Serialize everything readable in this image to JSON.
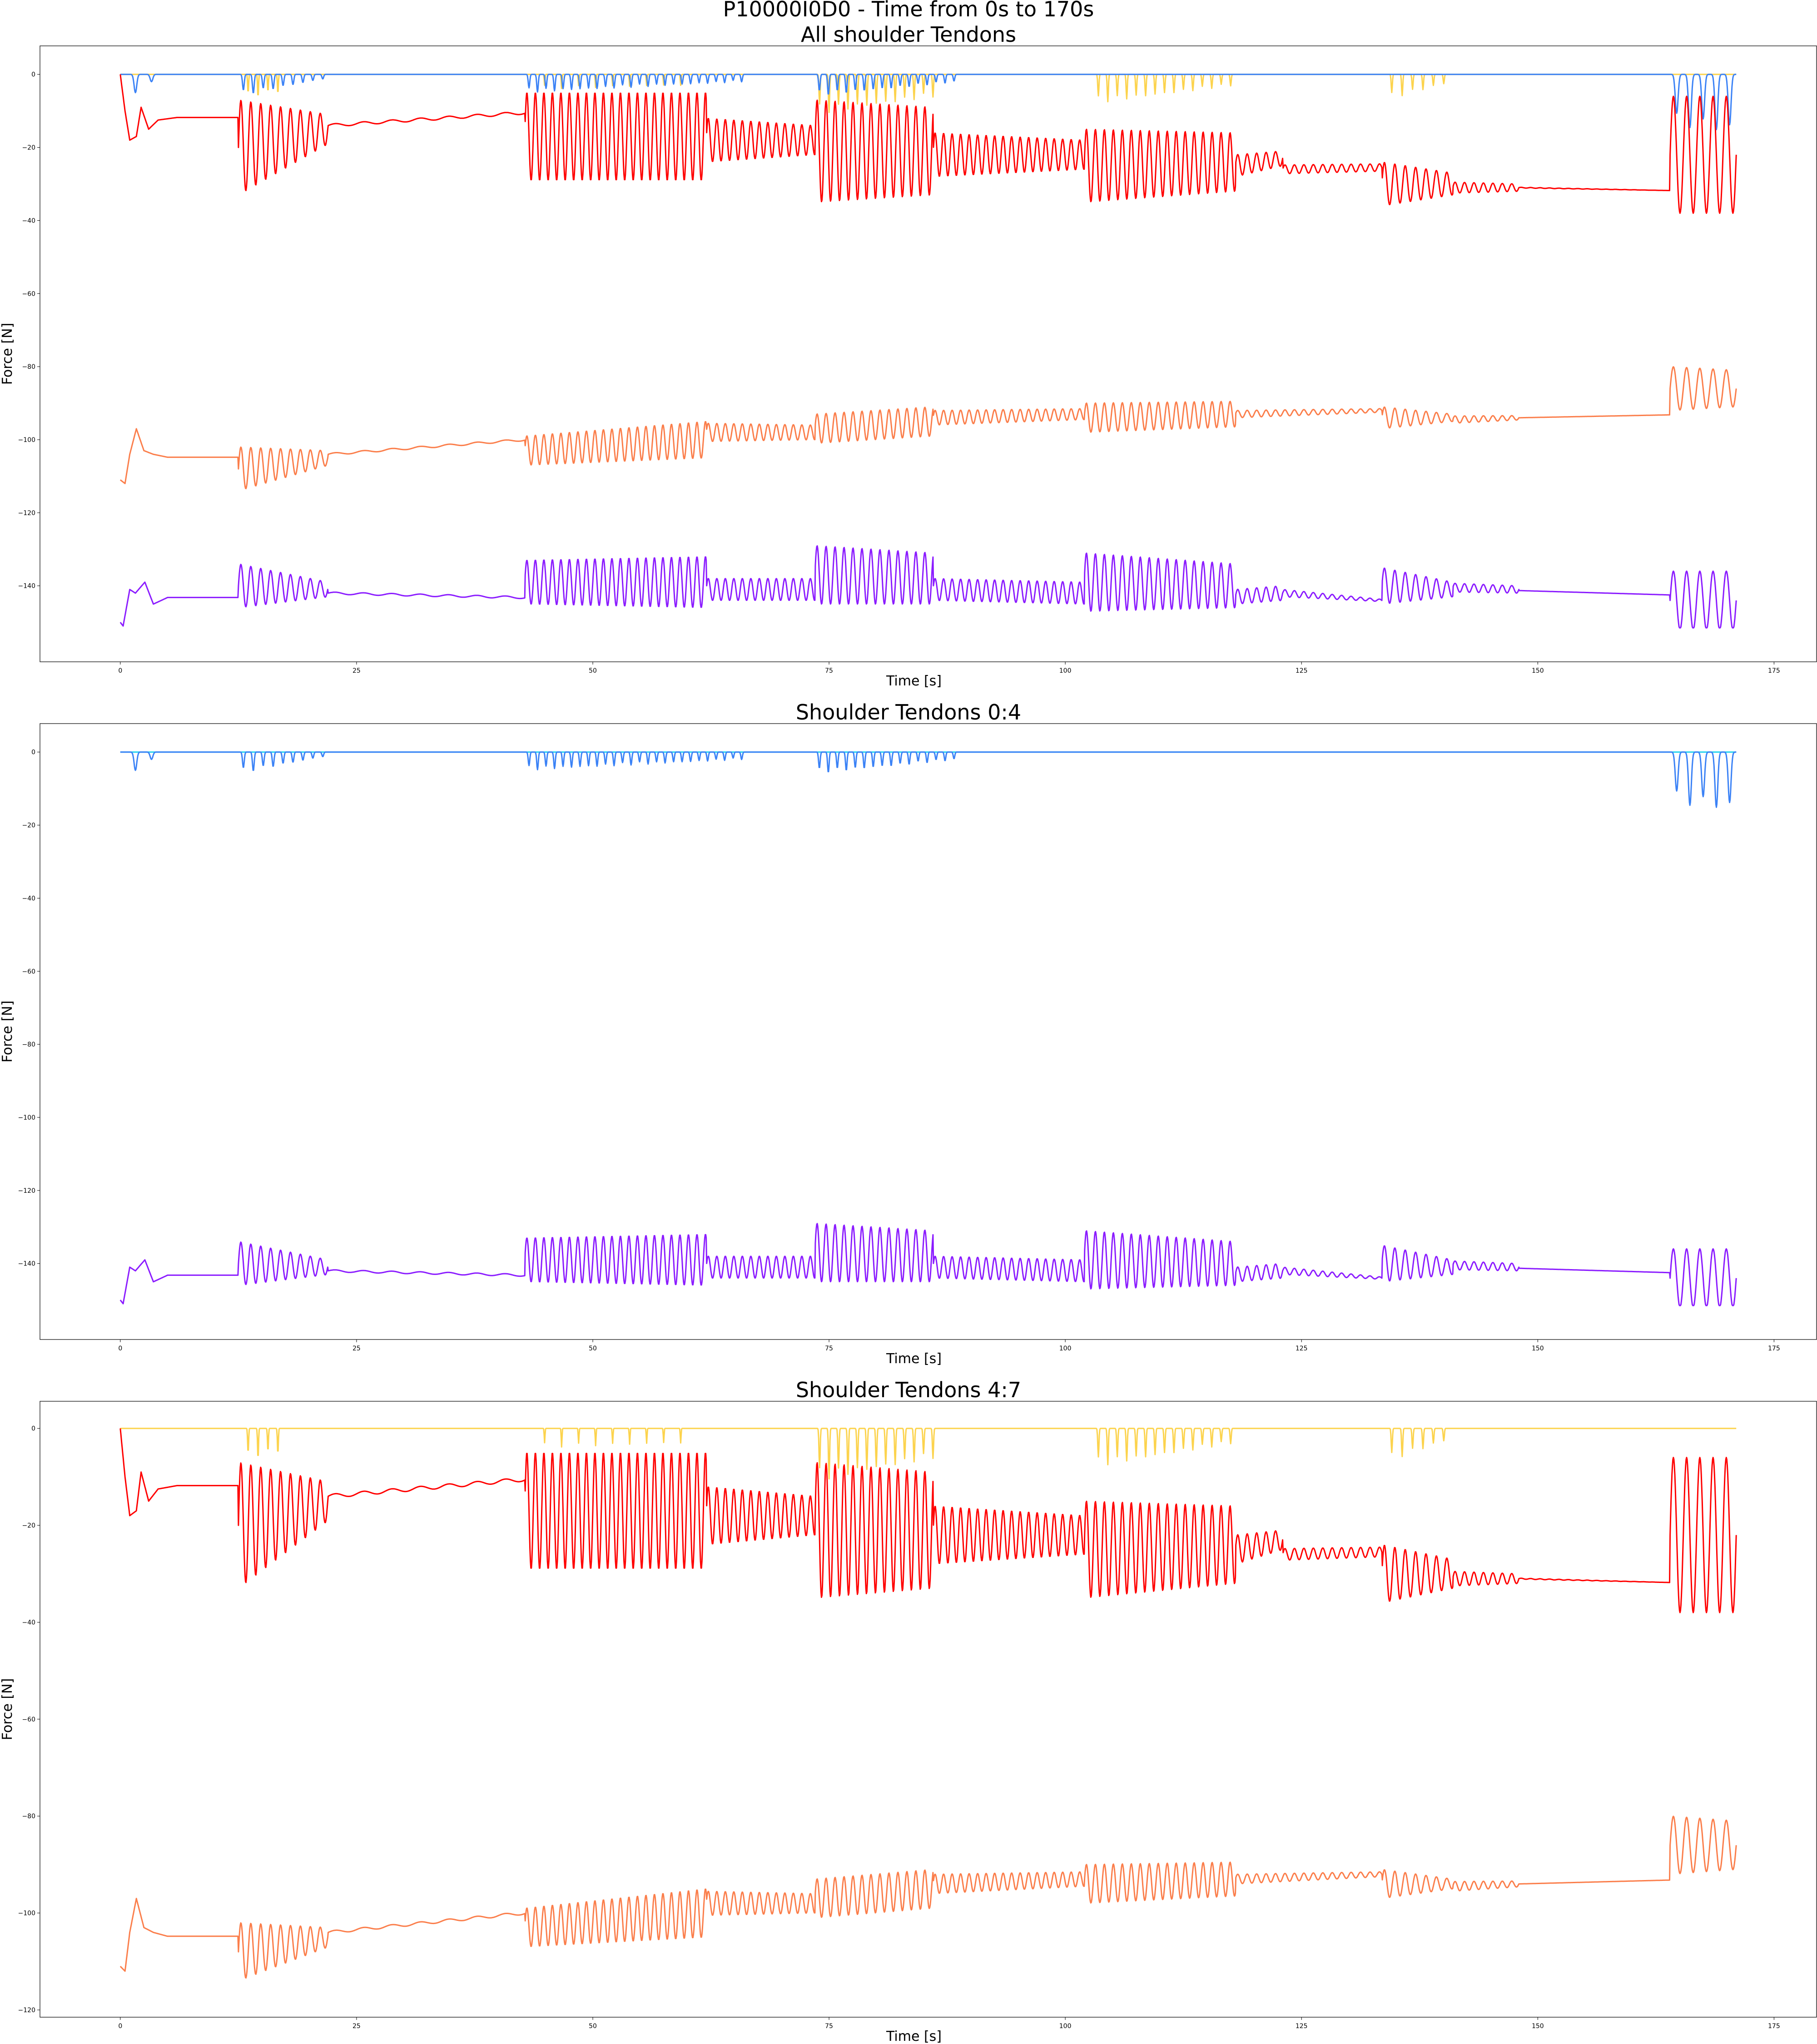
{
  "suptitle": "P10000I0D0 - Time from 0s to 170s",
  "chart_data": [
    {
      "type": "line",
      "title": "All shoulder Tendons",
      "xlabel": "Time [s]",
      "ylabel": "Force [N]",
      "xlim": [
        -8.5,
        179.5
      ],
      "ylim": [
        -160.8,
        7.8
      ],
      "xticks": [
        0,
        25,
        50,
        75,
        100,
        125,
        150,
        175
      ],
      "yticks": [
        0,
        -20,
        -40,
        -60,
        -80,
        -100,
        -120,
        -140
      ],
      "grid": false,
      "legend": "none",
      "series": [
        {
          "color": "#fcd34d",
          "values_ref": "tendon_yellow"
        },
        {
          "color": "#3b82f6",
          "values_ref": "tendon_blue"
        },
        {
          "color": "#ff0000",
          "values_ref": "tendon_red"
        },
        {
          "color": "#fb7e4b",
          "values_ref": "tendon_orange"
        },
        {
          "color": "#8b1cff",
          "values_ref": "tendon_purple"
        }
      ]
    },
    {
      "type": "line",
      "title": "Shoulder Tendons 0:4",
      "xlabel": "Time [s]",
      "ylabel": "Force [N]",
      "xlim": [
        -8.5,
        179.5
      ],
      "ylim": [
        -160.8,
        7.8
      ],
      "xticks": [
        0,
        25,
        50,
        75,
        100,
        125,
        150,
        175
      ],
      "yticks": [
        0,
        -20,
        -40,
        -60,
        -80,
        -100,
        -120,
        -140
      ],
      "grid": false,
      "legend": "none",
      "series": [
        {
          "color": "#22d3ee",
          "values_ref": "tendon_cyan"
        },
        {
          "color": "#3b82f6",
          "values_ref": "tendon_blue"
        },
        {
          "color": "#8b1cff",
          "values_ref": "tendon_purple"
        }
      ]
    },
    {
      "type": "line",
      "title": "Shoulder Tendons 4:7",
      "xlabel": "Time [s]",
      "ylabel": "Force [N]",
      "xlim": [
        -8.5,
        179.5
      ],
      "ylim": [
        -121.5,
        5.6
      ],
      "xticks": [
        0,
        25,
        50,
        75,
        100,
        125,
        150,
        175
      ],
      "yticks": [
        0,
        -20,
        -40,
        -60,
        -80,
        -100,
        -120
      ],
      "grid": false,
      "legend": "none",
      "series": [
        {
          "color": "#fcd34d",
          "values_ref": "tendon_yellow"
        },
        {
          "color": "#ff0000",
          "values_ref": "tendon_red"
        },
        {
          "color": "#fb7e4b",
          "values_ref": "tendon_orange"
        }
      ]
    }
  ],
  "segments": {
    "tendon_red": [
      {
        "start": 0,
        "end": 12.5,
        "osc": false,
        "initial": [
          [
            0,
            0
          ],
          [
            0.5,
            -10
          ],
          [
            1.0,
            -18
          ],
          [
            1.7,
            -17
          ],
          [
            2.2,
            -9
          ],
          [
            3.0,
            -15
          ],
          [
            4.0,
            -12.5
          ],
          [
            6.0,
            -11.8
          ],
          [
            12.5,
            -11.8
          ]
        ]
      },
      {
        "start": 12.5,
        "end": 22,
        "base_from": -20,
        "base_to": -15,
        "amp_from": 13,
        "amp_to": 4,
        "period": 1.05
      },
      {
        "start": 22,
        "end": 42.8,
        "base_from": -14,
        "base_to": -10.5,
        "amp_from": 0.4,
        "amp_to": 0.4,
        "period": 3.0
      },
      {
        "start": 42.8,
        "end": 62,
        "base_from": -17,
        "base_to": -17,
        "amp_from": 12,
        "amp_to": 12,
        "period": 0.9
      },
      {
        "start": 62,
        "end": 73.5,
        "base_from": -18,
        "base_to": -18,
        "amp_from": 6,
        "amp_to": 4,
        "period": 0.9
      },
      {
        "start": 73.5,
        "end": 86,
        "base_from": -21,
        "base_to": -21,
        "amp_from": 14,
        "amp_to": 12,
        "period": 0.95
      },
      {
        "start": 86,
        "end": 102,
        "base_from": -22,
        "base_to": -22,
        "amp_from": 6,
        "amp_to": 4,
        "period": 0.9
      },
      {
        "start": 102,
        "end": 118,
        "base_from": -25,
        "base_to": -24,
        "amp_from": 10,
        "amp_to": 8,
        "period": 0.95
      },
      {
        "start": 118,
        "end": 123,
        "base_from": -25,
        "base_to": -23,
        "amp_from": 3,
        "amp_to": 2,
        "period": 1.0
      },
      {
        "start": 123,
        "end": 133.5,
        "base_from": -26,
        "base_to": -25.5,
        "amp_from": 1.2,
        "amp_to": 1.0,
        "period": 1.0
      },
      {
        "start": 133.5,
        "end": 141,
        "base_from": -30,
        "base_to": -30,
        "amp_from": 6,
        "amp_to": 3,
        "period": 1.1
      },
      {
        "start": 141,
        "end": 148,
        "base_from": -31,
        "base_to": -31,
        "amp_from": 1.5,
        "amp_to": 1.0,
        "period": 1.0
      },
      {
        "start": 148,
        "end": 164,
        "base_from": -31,
        "base_to": -31.8,
        "amp_from": 0.1,
        "amp_to": 0,
        "period": 1.0
      },
      {
        "start": 164,
        "end": 171,
        "base_from": -22,
        "base_to": -22,
        "amp_from": 16,
        "amp_to": 16,
        "period": 1.4
      }
    ],
    "tendon_orange": [
      {
        "start": 0,
        "end": 12.5,
        "osc": false,
        "initial": [
          [
            0,
            -111
          ],
          [
            0.5,
            -112
          ],
          [
            1.0,
            -104
          ],
          [
            1.7,
            -97
          ],
          [
            2.5,
            -103
          ],
          [
            3.5,
            -104
          ],
          [
            5.0,
            -104.8
          ],
          [
            12.5,
            -104.8
          ]
        ]
      },
      {
        "start": 12.5,
        "end": 22,
        "base_from": -108,
        "base_to": -105,
        "amp_from": 6,
        "amp_to": 2,
        "period": 1.05
      },
      {
        "start": 22,
        "end": 42.8,
        "base_from": -104,
        "base_to": -100,
        "amp_from": 0.3,
        "amp_to": 0.3,
        "period": 3.0
      },
      {
        "start": 42.8,
        "end": 62,
        "base_from": -103,
        "base_to": -100,
        "amp_from": 4,
        "amp_to": 5,
        "period": 0.9
      },
      {
        "start": 62,
        "end": 73.5,
        "base_from": -98,
        "base_to": -98,
        "amp_from": 2.5,
        "amp_to": 2,
        "period": 0.9
      },
      {
        "start": 73.5,
        "end": 86,
        "base_from": -97,
        "base_to": -95,
        "amp_from": 4,
        "amp_to": 4,
        "period": 0.95
      },
      {
        "start": 86,
        "end": 102,
        "base_from": -94,
        "base_to": -93,
        "amp_from": 2,
        "amp_to": 1.5,
        "period": 0.9
      },
      {
        "start": 102,
        "end": 118,
        "base_from": -94,
        "base_to": -93,
        "amp_from": 4,
        "amp_to": 3.5,
        "period": 0.95
      },
      {
        "start": 118,
        "end": 133.5,
        "base_from": -93,
        "base_to": -92,
        "amp_from": 1,
        "amp_to": 0.5,
        "period": 1.0
      },
      {
        "start": 133.5,
        "end": 141,
        "base_from": -94,
        "base_to": -94,
        "amp_from": 3,
        "amp_to": 1,
        "period": 1.1
      },
      {
        "start": 141,
        "end": 148,
        "base_from": -94.5,
        "base_to": -94,
        "amp_from": 1,
        "amp_to": 0.6,
        "period": 1.0
      },
      {
        "start": 148,
        "end": 164,
        "base_from": -94,
        "base_to": -93.2,
        "amp_from": 0,
        "amp_to": 0,
        "period": 1.0
      },
      {
        "start": 164,
        "end": 171,
        "base_from": -86,
        "base_to": -86,
        "amp_from": 6,
        "amp_to": 5,
        "period": 1.4
      }
    ],
    "tendon_purple": [
      {
        "start": 0,
        "end": 12.5,
        "osc": false,
        "initial": [
          [
            0,
            -150
          ],
          [
            0.3,
            -151
          ],
          [
            1.0,
            -141
          ],
          [
            1.6,
            -142
          ],
          [
            2.6,
            -139
          ],
          [
            3.5,
            -145
          ],
          [
            5.0,
            -143.2
          ],
          [
            12.5,
            -143.2
          ]
        ]
      },
      {
        "start": 12.5,
        "end": 22,
        "base_from": -140,
        "base_to": -141,
        "amp_from": 6,
        "amp_to": 2,
        "period": 1.05
      },
      {
        "start": 22,
        "end": 42.8,
        "base_from": -142,
        "base_to": -143.2,
        "amp_from": 0.3,
        "amp_to": 0.3,
        "period": 3.0
      },
      {
        "start": 42.8,
        "end": 62,
        "base_from": -139,
        "base_to": -139,
        "amp_from": 6,
        "amp_to": 7,
        "period": 0.9
      },
      {
        "start": 62,
        "end": 73.5,
        "base_from": -141,
        "base_to": -141,
        "amp_from": 3,
        "amp_to": 3,
        "period": 0.9
      },
      {
        "start": 73.5,
        "end": 86,
        "base_from": -137,
        "base_to": -138,
        "amp_from": 8,
        "amp_to": 7,
        "period": 0.95
      },
      {
        "start": 86,
        "end": 102,
        "base_from": -141,
        "base_to": -142,
        "amp_from": 3,
        "amp_to": 3,
        "period": 0.9
      },
      {
        "start": 102,
        "end": 118,
        "base_from": -139,
        "base_to": -140,
        "amp_from": 8,
        "amp_to": 6,
        "period": 0.95
      },
      {
        "start": 118,
        "end": 123,
        "base_from": -143,
        "base_to": -142,
        "amp_from": 2,
        "amp_to": 2,
        "period": 1.0
      },
      {
        "start": 123,
        "end": 133.5,
        "base_from": -142,
        "base_to": -144,
        "amp_from": 1,
        "amp_to": 0.3,
        "period": 1.0
      },
      {
        "start": 133.5,
        "end": 141,
        "base_from": -140,
        "base_to": -141,
        "amp_from": 5,
        "amp_to": 2,
        "period": 1.1
      },
      {
        "start": 141,
        "end": 148,
        "base_from": -140.5,
        "base_to": -141,
        "amp_from": 1.2,
        "amp_to": 1,
        "period": 1.0
      },
      {
        "start": 148,
        "end": 164,
        "base_from": -141.3,
        "base_to": -142.5,
        "amp_from": 0,
        "amp_to": 0,
        "period": 1.0
      },
      {
        "start": 164,
        "end": 171,
        "base_from": -144,
        "base_to": -144,
        "amp_from": 8,
        "amp_to": 8,
        "period": 1.4,
        "clip_min": -151.5
      }
    ],
    "tendon_blue": [
      {
        "start": 0,
        "end": 12.5,
        "spikes": [
          [
            1.6,
            -5,
            0.4
          ],
          [
            3.3,
            -2,
            0.4
          ]
        ]
      },
      {
        "start": 12.5,
        "end": 22,
        "spike_period": 1.05,
        "spike_from": -6,
        "spike_to": -1,
        "width": 0.18
      },
      {
        "start": 42.8,
        "end": 66,
        "spike_period": 0.9,
        "spike_from": -5,
        "spike_to": -2,
        "width": 0.16
      },
      {
        "start": 73.5,
        "end": 89,
        "spike_period": 0.95,
        "spike_from": -6,
        "spike_to": -2,
        "width": 0.16
      },
      {
        "start": 164,
        "end": 171,
        "spike_period": 1.4,
        "spike_from": -14,
        "spike_to": -16,
        "width": 0.3
      }
    ],
    "tendon_yellow": [
      {
        "start": 13,
        "end": 17.5,
        "spike_period": 1.05,
        "spike_from": -7,
        "spike_to": -5,
        "width": 0.1
      },
      {
        "start": 44,
        "end": 61,
        "spike_period": 1.8,
        "spike_from": -4,
        "spike_to": -3,
        "width": 0.08
      },
      {
        "start": 73.5,
        "end": 86.5,
        "spike_period": 1.0,
        "spike_from": -11,
        "spike_to": -6,
        "width": 0.12
      },
      {
        "start": 103,
        "end": 118,
        "spike_period": 1.0,
        "spike_from": -8,
        "spike_to": -3,
        "width": 0.12
      },
      {
        "start": 134,
        "end": 141,
        "spike_period": 1.1,
        "spike_from": -7,
        "spike_to": -2,
        "width": 0.12
      }
    ],
    "tendon_cyan": [
      {
        "start": 0,
        "end": 171,
        "flat": 0
      }
    ]
  }
}
